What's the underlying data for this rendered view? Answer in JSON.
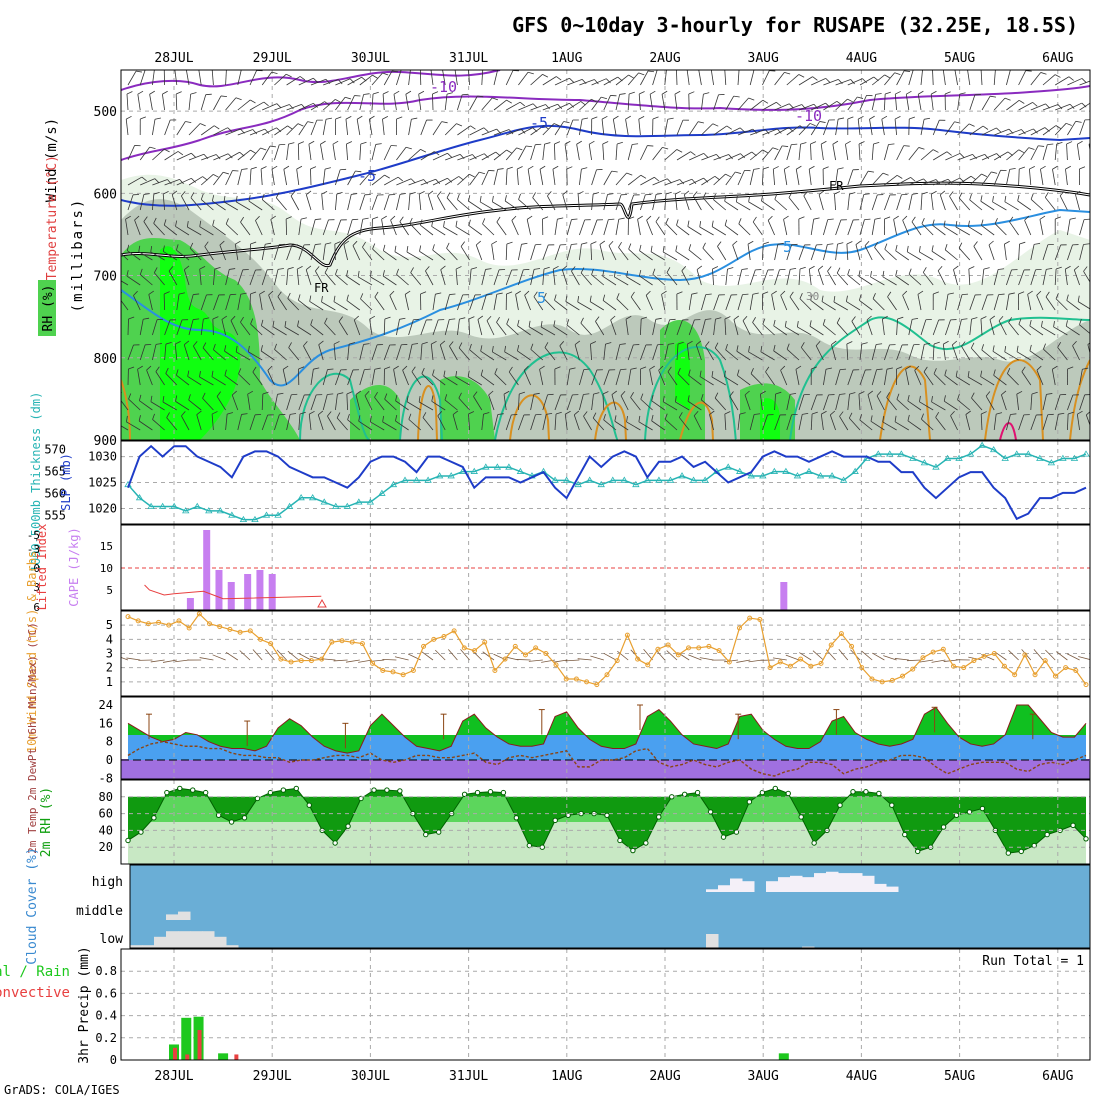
{
  "title": "GFS 0~10day 3-hourly for RUSAPE (32.25E, 18.5S)",
  "footer": "GrADS: COLA/IGES",
  "date_labels": [
    "28JUL",
    "29JUL",
    "30JUL",
    "31JUL",
    "1AUG",
    "2AUG",
    "3AUG",
    "4AUG",
    "5AUG",
    "6AUG"
  ],
  "colors": {
    "rh_light": "#e8f3e6",
    "rh_mid": "#bcc9bb",
    "rh_green": "#4fd24f",
    "rh_bright": "#10ff10",
    "cloud_bg": "#6aaed6",
    "cloud_fill": "#e1e1e1",
    "precip_total": "#1ec81e",
    "precip_conv": "#e84040",
    "slp": "#1e3cc8",
    "thickness": "#27b4b4",
    "cape": "#c77ff0",
    "lifted": "#e84040",
    "wind": "#e8a030"
  },
  "chart_data": [
    {
      "type": "heatmap",
      "panel": "upper-air",
      "ylabel_wind": "Wind (m/s)",
      "ylabel_temp": "Temperature (°C)",
      "ylabel_rh": "RH (%)",
      "ylabel_pressure": "(millibars)",
      "ylim": [
        900,
        450
      ],
      "yticks": [
        500,
        600,
        700,
        800,
        900
      ],
      "contour_labels": [
        "-10",
        "-10",
        "-5",
        "-5",
        "5",
        "5",
        "FR",
        "FR",
        "30"
      ]
    },
    {
      "type": "line",
      "panel": "slp-thickness",
      "ylabel_left": "1000-500mb Thickness (dm)",
      "ylabel_right": "SLP (mb)",
      "yticks_left": [
        555,
        560,
        565,
        570
      ],
      "yticks_right": [
        1020,
        1025,
        1030
      ],
      "series": [
        {
          "name": "SLP (mb)",
          "values": [
            1024,
            1030,
            1032,
            1030,
            1032,
            1032,
            1030,
            1029,
            1028,
            1026,
            1030,
            1031,
            1031,
            1030,
            1028,
            1027,
            1026,
            1026,
            1025,
            1024,
            1026,
            1029,
            1030,
            1030,
            1029,
            1027,
            1030,
            1030,
            1029,
            1028,
            1024,
            1026,
            1026,
            1026,
            1025,
            1026,
            1027,
            1024,
            1022,
            1026,
            1030,
            1028,
            1030,
            1031,
            1030,
            1026,
            1029,
            1029,
            1030,
            1028,
            1029,
            1027,
            1025,
            1026,
            1027,
            1030,
            1031,
            1030,
            1030,
            1029,
            1030,
            1031,
            1030,
            1030,
            1030,
            1029,
            1029,
            1027,
            1027,
            1024,
            1022,
            1024,
            1026,
            1027,
            1027,
            1024,
            1022,
            1018,
            1019,
            1022,
            1022,
            1023,
            1023,
            1024
          ]
        },
        {
          "name": "1000-500mb Thickness (dm)",
          "values": [
            562,
            559,
            557,
            557,
            557,
            556,
            557,
            556,
            556,
            555,
            554,
            554,
            555,
            555,
            557,
            559,
            559,
            558,
            557,
            557,
            558,
            558,
            560,
            562,
            563,
            563,
            563,
            564,
            564,
            565,
            565,
            566,
            566,
            566,
            565,
            564,
            565,
            563,
            563,
            562,
            563,
            562,
            563,
            563,
            562,
            563,
            563,
            563,
            564,
            563,
            563,
            565,
            566,
            565,
            564,
            564,
            565,
            565,
            564,
            565,
            564,
            564,
            563,
            565,
            568,
            569,
            569,
            569,
            568,
            567,
            566,
            568,
            568,
            569,
            571,
            570,
            568,
            569,
            569,
            568,
            567,
            568,
            568,
            569
          ]
        }
      ]
    },
    {
      "type": "bar",
      "panel": "cape-lifted-index",
      "ylabel_left": "Lifted Index",
      "ylabel_right": "CAPE (J/kg)",
      "yticks_left": [
        "-5",
        "-3",
        "0",
        "3",
        "6"
      ],
      "yticks_right": [
        "15",
        "10",
        "5"
      ],
      "cape_bars": [
        {
          "t": 0.167,
          "value": 3
        },
        {
          "t": 0.333,
          "value": 20
        },
        {
          "t": 0.458,
          "value": 10
        },
        {
          "t": 0.583,
          "value": 7
        },
        {
          "t": 0.75,
          "value": 9
        },
        {
          "t": 0.875,
          "value": 10
        },
        {
          "t": 1.0,
          "value": 9
        },
        {
          "t": 6.21,
          "value": 7
        }
      ],
      "lifted_index": {
        "t": [
          -0.3,
          -0.25,
          -0.1,
          0.0,
          0.15,
          0.3,
          0.4,
          0.5,
          1.5
        ],
        "values": [
          4.8,
          5.2,
          5.6,
          5.5,
          5.4,
          5.3,
          5.6,
          5.9,
          5.7
        ]
      }
    },
    {
      "type": "line",
      "panel": "10m-wind",
      "ylabel": "10m Wind Speed (m/s) & Barbs",
      "yticks": [
        1,
        2,
        3,
        4,
        5
      ],
      "series": [
        {
          "name": "10m wind speed (m/s)",
          "values": [
            5.6,
            5.3,
            5.1,
            5.2,
            5.0,
            5.3,
            4.8,
            5.8,
            5.1,
            4.9,
            4.7,
            4.5,
            4.6,
            4.0,
            3.7,
            2.6,
            2.4,
            2.5,
            2.5,
            2.6,
            3.8,
            3.9,
            3.8,
            3.7,
            2.3,
            1.8,
            1.7,
            1.5,
            1.8,
            3.5,
            4.0,
            4.2,
            4.6,
            3.4,
            3.2,
            3.8,
            1.8,
            2.6,
            3.5,
            2.9,
            3.4,
            3.0,
            2.2,
            1.2,
            1.2,
            1.0,
            0.8,
            1.5,
            2.5,
            4.3,
            2.6,
            2.2,
            3.3,
            3.6,
            2.9,
            3.4,
            3.4,
            3.5,
            3.2,
            2.4,
            4.8,
            5.5,
            5.4,
            2.0,
            2.4,
            2.1,
            2.6,
            2.1,
            2.3,
            3.6,
            4.4,
            3.5,
            2.0,
            1.2,
            1.0,
            1.1,
            1.4,
            1.9,
            2.7,
            3.1,
            3.3,
            2.1,
            2.0,
            2.5,
            2.8,
            3.0,
            2.1,
            1.5,
            2.9,
            1.5,
            2.5,
            1.4,
            2.0,
            1.8,
            0.8
          ]
        }
      ]
    },
    {
      "type": "area",
      "panel": "2m-temp",
      "ylabel": "2m Temp 2m DewPt (6hr Min/Max) (°C)",
      "yticks": [
        -8,
        0,
        8,
        16,
        24
      ],
      "series": [
        {
          "name": "2m Temp (°C)",
          "values": [
            16,
            13,
            10,
            8,
            9,
            12,
            11,
            8,
            6,
            5,
            5,
            4,
            6,
            14,
            18,
            15,
            10,
            6,
            4,
            3,
            4,
            15,
            20,
            15,
            10,
            6,
            5,
            4,
            6,
            17,
            20,
            14,
            10,
            7,
            6,
            6,
            7,
            19,
            21,
            14,
            9,
            6,
            5,
            5,
            7,
            19,
            22,
            17,
            11,
            7,
            6,
            5,
            7,
            19,
            20,
            13,
            9,
            6,
            5,
            5,
            8,
            17,
            19,
            12,
            9,
            7,
            6,
            7,
            9,
            20,
            23,
            16,
            10,
            7,
            6,
            7,
            11,
            24,
            24,
            18,
            12,
            10,
            10,
            16
          ]
        },
        {
          "name": "2m DewPt (°C)",
          "values": [
            2,
            5,
            7,
            8,
            7,
            6,
            6,
            5,
            5,
            3,
            2,
            2,
            1,
            1,
            -1,
            0,
            0,
            1,
            2,
            2,
            1,
            3,
            0,
            -1,
            0,
            2,
            2,
            1,
            1,
            2,
            3,
            -1,
            -2,
            1,
            2,
            1,
            2,
            3,
            4,
            -3,
            -3,
            0,
            0,
            1,
            4,
            5,
            -1,
            -3,
            -2,
            0,
            -2,
            -3,
            -1,
            0,
            -4,
            -6,
            -7,
            -5,
            -4,
            -1,
            -1,
            -2,
            -6,
            -4,
            -3,
            -1,
            0,
            2,
            2,
            1,
            -3,
            -6,
            -4,
            -2,
            -1,
            -1,
            -1,
            -4,
            -5,
            -2,
            -1,
            -2,
            0,
            2
          ]
        }
      ],
      "max_markers": [
        20,
        17,
        16,
        20,
        22,
        24,
        20,
        22,
        23,
        20
      ]
    },
    {
      "type": "area",
      "panel": "2m-rh",
      "ylabel": "2m RH (%)",
      "yticks": [
        20,
        40,
        60,
        80
      ],
      "series": [
        {
          "name": "2m RH (%)",
          "values": [
            28,
            38,
            55,
            85,
            90,
            88,
            85,
            58,
            50,
            55,
            78,
            85,
            88,
            90,
            70,
            40,
            25,
            45,
            78,
            88,
            88,
            87,
            60,
            35,
            38,
            60,
            83,
            85,
            86,
            85,
            55,
            22,
            20,
            52,
            58,
            60,
            60,
            58,
            28,
            16,
            25,
            56,
            80,
            83,
            85,
            62,
            32,
            38,
            74,
            85,
            90,
            84,
            56,
            25,
            40,
            70,
            86,
            86,
            84,
            70,
            35,
            15,
            20,
            44,
            58,
            62,
            66,
            40,
            13,
            15,
            22,
            35,
            40,
            46,
            30
          ]
        }
      ]
    },
    {
      "type": "area",
      "panel": "cloud-cover",
      "ylabel": "Cloud Cover (%)",
      "yticks": [
        "high",
        "middle",
        "low"
      ],
      "low_cloud": [
        10,
        10,
        40,
        60,
        60,
        60,
        60,
        40,
        10,
        0,
        0,
        0,
        0,
        0,
        0,
        0,
        0,
        0,
        0,
        0,
        0,
        0,
        0,
        0,
        0,
        0,
        0,
        0,
        0,
        0,
        0,
        0,
        0,
        0,
        0,
        0,
        0,
        0,
        0,
        0,
        0,
        0,
        0,
        0,
        0,
        0,
        0,
        0,
        50,
        0,
        0,
        0,
        0,
        0,
        0,
        0,
        5,
        0,
        0,
        0,
        0,
        0,
        0,
        0,
        0,
        0,
        0,
        0,
        0,
        0,
        0,
        0,
        0,
        0,
        0,
        0,
        0,
        0,
        0,
        0
      ],
      "mid_cloud": [
        0,
        0,
        0,
        20,
        30,
        0,
        0,
        0,
        0,
        0,
        0,
        0,
        0,
        0,
        0,
        0,
        0,
        0,
        0,
        0,
        0,
        0,
        0,
        0,
        0,
        0,
        0,
        0,
        0,
        0,
        0,
        0,
        0,
        0,
        0,
        0,
        0,
        0,
        0,
        0,
        0,
        0,
        0,
        0,
        0,
        0,
        0,
        0,
        0,
        0,
        0,
        0,
        0,
        0,
        0,
        0,
        0,
        0,
        0,
        0,
        0,
        0,
        0,
        0,
        0,
        0,
        0,
        0,
        0,
        0,
        0,
        0,
        0,
        0,
        0,
        0,
        0,
        0,
        0,
        0
      ],
      "high_cloud": [
        0,
        0,
        0,
        0,
        0,
        0,
        0,
        0,
        0,
        0,
        0,
        0,
        0,
        0,
        0,
        0,
        0,
        0,
        0,
        0,
        0,
        0,
        0,
        0,
        0,
        0,
        0,
        0,
        0,
        0,
        0,
        0,
        0,
        0,
        0,
        0,
        0,
        0,
        0,
        0,
        0,
        0,
        0,
        0,
        0,
        0,
        0,
        0,
        10,
        25,
        50,
        40,
        0,
        40,
        55,
        60,
        55,
        70,
        75,
        70,
        70,
        60,
        30,
        20,
        0,
        0,
        0,
        0,
        0,
        0,
        0,
        0,
        0,
        0,
        0,
        0,
        0,
        0,
        0,
        0
      ]
    },
    {
      "type": "bar",
      "panel": "precip",
      "ylabel": "3hr Precip (mm)",
      "legend_left_1": "Total / Rain",
      "legend_left_2": "Convective",
      "run_total": "Run Total = 1",
      "yticks": [
        0,
        0.2,
        0.4,
        0.6,
        0.8
      ],
      "bars": [
        {
          "t": 0.0,
          "total": 0.14,
          "conv": 0.11
        },
        {
          "t": 0.125,
          "total": 0.38,
          "conv": 0.05
        },
        {
          "t": 0.25,
          "total": 0.39,
          "conv": 0.27
        },
        {
          "t": 0.5,
          "total": 0.06,
          "conv": 0.0
        },
        {
          "t": 0.625,
          "total": 0.0,
          "conv": 0.05
        },
        {
          "t": 6.21,
          "total": 0.06,
          "conv": 0.0
        }
      ]
    }
  ]
}
